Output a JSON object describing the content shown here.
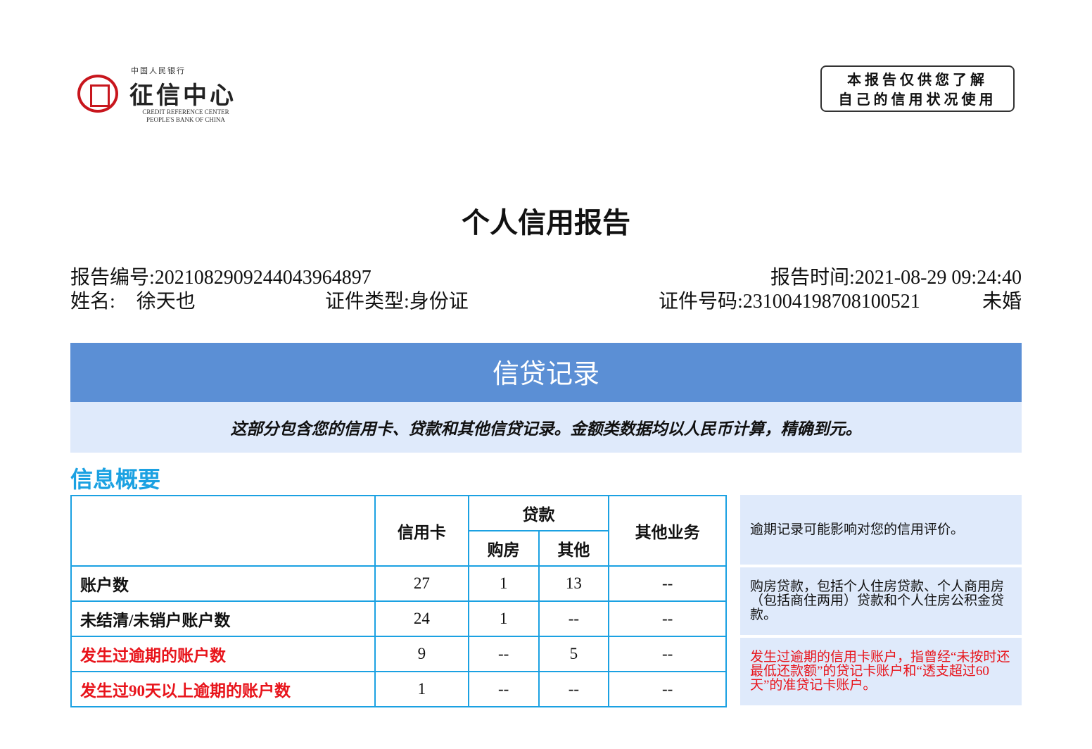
{
  "logo": {
    "top": "中国人民银行",
    "name": "征信中心",
    "en1": "CREDIT REFERENCE CENTER",
    "en2": "PEOPLE'S BANK OF CHINA"
  },
  "stamp": {
    "line1": "本报告仅供您了解",
    "line2": "自己的信用状况使用"
  },
  "title": "个人信用报告",
  "info": {
    "report_no_label": "报告编号:",
    "report_no": "2021082909244043964897",
    "report_time_label": "报告时间:",
    "report_time": "2021-08-29 09:24:40",
    "name_label": "姓名:",
    "name": "徐天也",
    "id_type_label": "证件类型:",
    "id_type": "身份证",
    "id_no_label": "证件号码:",
    "id_no": "231004198708100521",
    "marital": "未婚"
  },
  "section": {
    "title": "信贷记录",
    "desc": "这部分包含您的信用卡、贷款和其他信贷记录。金额类数据均以人民币计算，精确到元。"
  },
  "summary": {
    "title": "信息概要",
    "headers": {
      "credit_card": "信用卡",
      "loan": "贷款",
      "house": "购房",
      "other": "其他",
      "other_business": "其他业务"
    },
    "rows": [
      {
        "label": "账户数",
        "values": [
          "27",
          "1",
          "13",
          "--"
        ],
        "highlight": false
      },
      {
        "label": "未结清/未销户账户数",
        "values": [
          "24",
          "1",
          "--",
          "--"
        ],
        "highlight": false
      },
      {
        "label": "发生过逾期的账户数",
        "values": [
          "9",
          "--",
          "5",
          "--"
        ],
        "highlight": true
      },
      {
        "label": "发生过90天以上逾期的账户数",
        "values": [
          "1",
          "--",
          "--",
          "--"
        ],
        "highlight": true
      }
    ]
  },
  "notes": [
    "逾期记录可能影响对您的信用评价。",
    "购房贷款，包括个人住房贷款、个人商用房（包括商住两用）贷款和个人住房公积金贷款。",
    "发生过逾期的信用卡账户，指曾经“未按时还最低还款额”的贷记卡账户和“透支超过60天”的准贷记卡账户。"
  ],
  "colors": {
    "accent": "#5b8fd5",
    "light": "#dfeafb",
    "cyan": "#1ba1e2",
    "red": "#e8141b"
  }
}
